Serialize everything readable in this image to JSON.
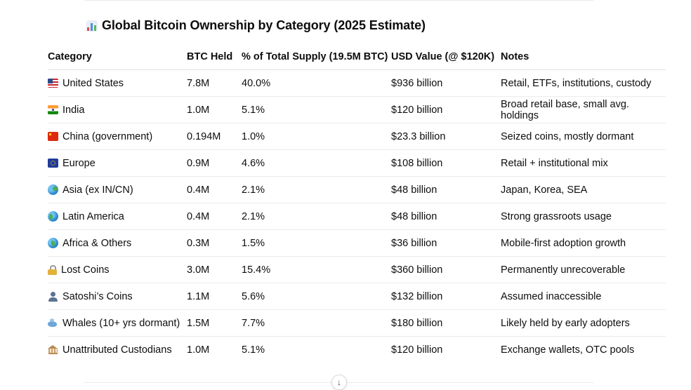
{
  "title": "Global Bitcoin Ownership by Category (2025 Estimate)",
  "title_icon": "bar-chart-icon",
  "table": {
    "headers": [
      "Category",
      "BTC Held",
      "% of Total Supply (19.5M BTC)",
      "USD Value (@ $120K)",
      "Notes"
    ],
    "rows": [
      {
        "icon": "us-flag-icon",
        "category": "United States",
        "btc": "7.8M",
        "pct": "40.0%",
        "usd": "$936 billion",
        "notes": "Retail, ETFs, institutions, custody"
      },
      {
        "icon": "india-flag-icon",
        "category": "India",
        "btc": "1.0M",
        "pct": "5.1%",
        "usd": "$120 billion",
        "notes": "Broad retail base, small avg. holdings"
      },
      {
        "icon": "china-flag-icon",
        "category": "China (government)",
        "btc": "0.194M",
        "pct": "1.0%",
        "usd": "$23.3 billion",
        "notes": "Seized coins, mostly dormant"
      },
      {
        "icon": "eu-flag-icon",
        "category": "Europe",
        "btc": "0.9M",
        "pct": "4.6%",
        "usd": "$108 billion",
        "notes": "Retail + institutional mix"
      },
      {
        "icon": "globe-asia-icon",
        "category": "Asia (ex IN/CN)",
        "btc": "0.4M",
        "pct": "2.1%",
        "usd": "$48 billion",
        "notes": "Japan, Korea, SEA"
      },
      {
        "icon": "globe-americas-icon",
        "category": "Latin America",
        "btc": "0.4M",
        "pct": "2.1%",
        "usd": "$48 billion",
        "notes": "Strong grassroots usage"
      },
      {
        "icon": "globe-africa-icon",
        "category": "Africa & Others",
        "btc": "0.3M",
        "pct": "1.5%",
        "usd": "$36 billion",
        "notes": "Mobile-first adoption growth"
      },
      {
        "icon": "lock-icon",
        "category": "Lost Coins",
        "btc": "3.0M",
        "pct": "15.4%",
        "usd": "$360 billion",
        "notes": "Permanently unrecoverable"
      },
      {
        "icon": "person-icon",
        "category": "Satoshi’s Coins",
        "btc": "1.1M",
        "pct": "5.6%",
        "usd": "$132 billion",
        "notes": "Assumed inaccessible"
      },
      {
        "icon": "whale-icon",
        "category": "Whales (10+ yrs dormant)",
        "btc": "1.5M",
        "pct": "7.7%",
        "usd": "$180 billion",
        "notes": "Likely held by early adopters"
      },
      {
        "icon": "bank-icon",
        "category": "Unattributed Custodians",
        "btc": "1.0M",
        "pct": "5.1%",
        "usd": "$120 billion",
        "notes": "Exchange wallets, OTC pools"
      }
    ]
  },
  "scroll_button": {
    "icon": "arrow-down-icon",
    "glyph": "↓"
  },
  "colors": {
    "text": "#0d0d0d",
    "divider": "#ececec",
    "background": "#ffffff"
  }
}
